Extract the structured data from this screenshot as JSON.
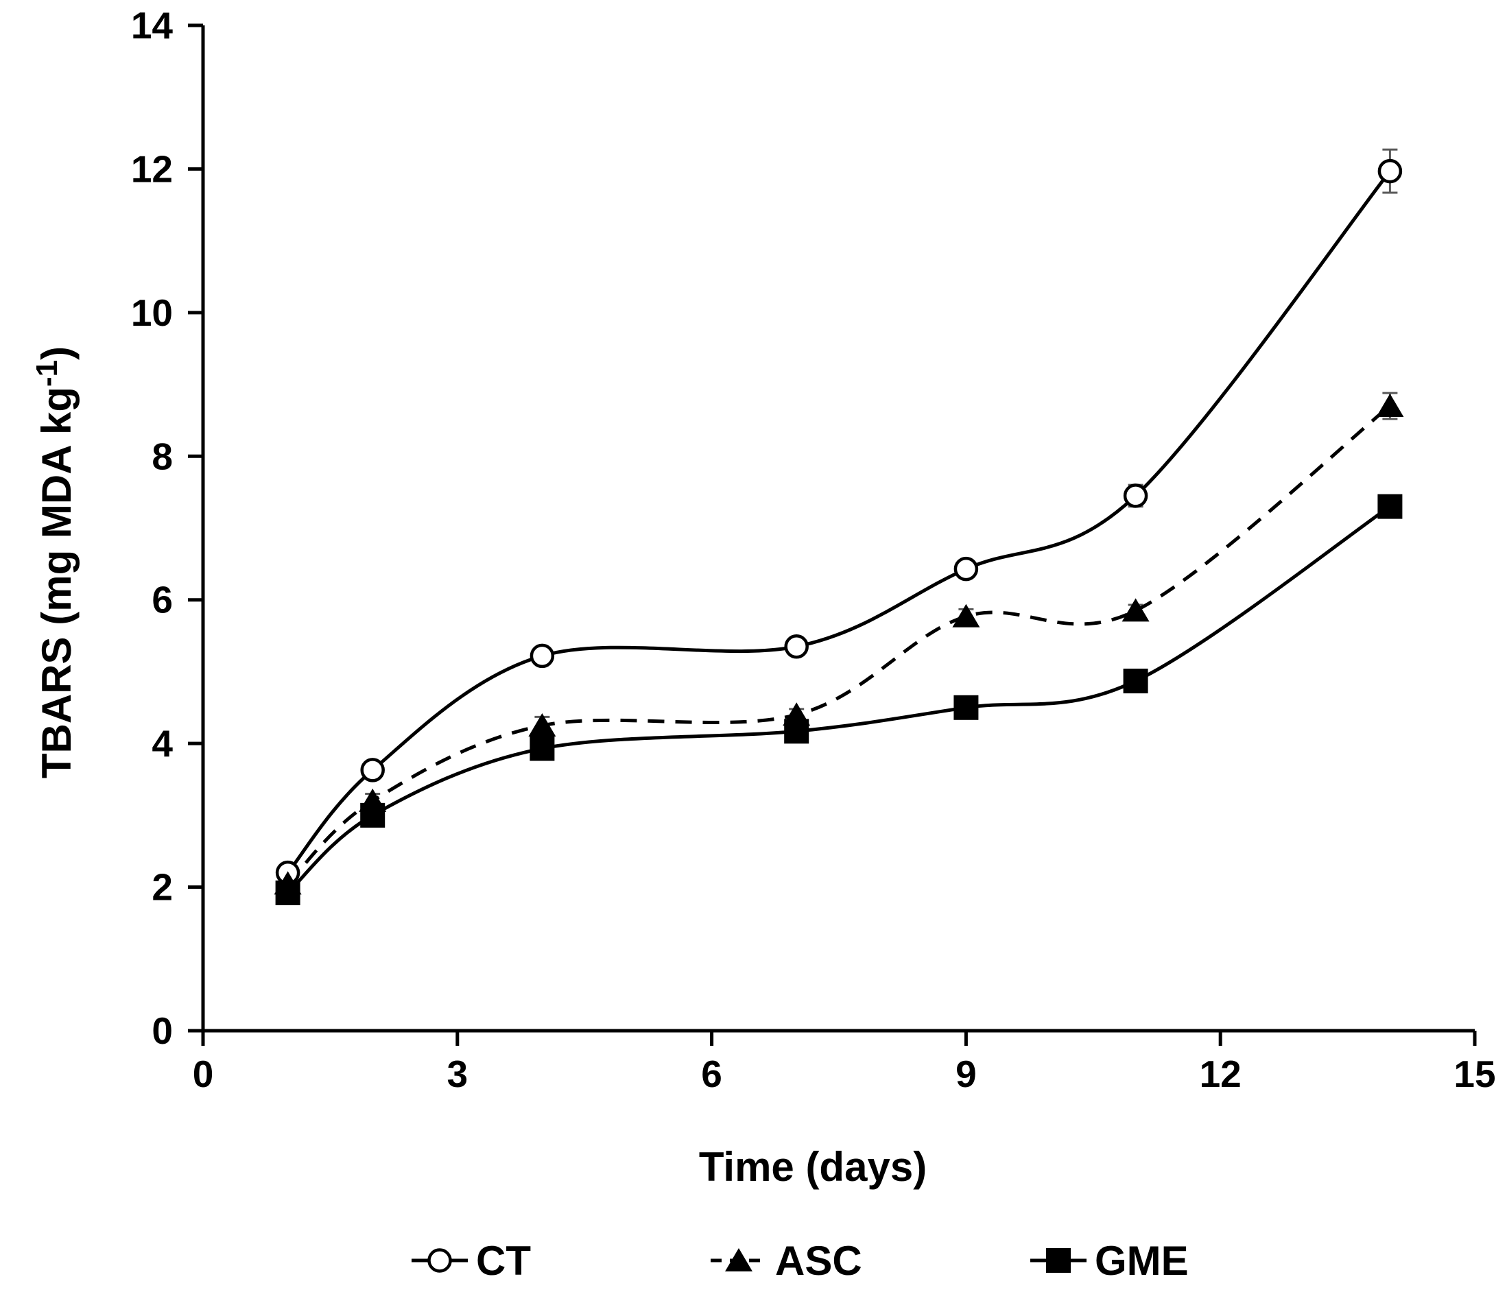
{
  "chart_data": {
    "type": "line",
    "title": "",
    "xlabel": "Time (days)",
    "ylabel": "TBARS (mg MDA kg⁻¹)",
    "x": [
      1,
      2,
      4,
      7,
      9,
      11,
      14
    ],
    "series": [
      {
        "name": "CT",
        "marker": "open-circle",
        "line_style": "solid",
        "values": [
          2.2,
          3.63,
          5.22,
          5.35,
          6.43,
          7.45,
          11.97
        ],
        "errors": [
          0.06,
          0.06,
          0.06,
          0.06,
          0.06,
          0.15,
          0.3
        ]
      },
      {
        "name": "ASC",
        "marker": "filled-triangle",
        "line_style": "dashed",
        "values": [
          2.05,
          3.2,
          4.25,
          4.4,
          5.77,
          5.85,
          8.7
        ],
        "errors": [
          0.06,
          0.1,
          0.12,
          0.08,
          0.1,
          0.08,
          0.18
        ]
      },
      {
        "name": "GME",
        "marker": "filled-square",
        "line_style": "solid",
        "values": [
          1.92,
          3.0,
          3.93,
          4.17,
          4.5,
          4.87,
          7.3
        ],
        "errors": [
          0.05,
          0.05,
          0.05,
          0.05,
          0.05,
          0.05,
          0.05
        ]
      }
    ],
    "x_ticks": [
      "0",
      "3",
      "6",
      "9",
      "12",
      "15"
    ],
    "y_ticks": [
      "0",
      "2",
      "4",
      "6",
      "8",
      "10",
      "12",
      "14"
    ],
    "xlim": [
      0,
      15
    ],
    "ylim": [
      0,
      14
    ],
    "grid": false,
    "legend_position": "bottom",
    "colors": {
      "foreground": "#000000",
      "background": "#ffffff",
      "error_bar": "#595959"
    }
  }
}
